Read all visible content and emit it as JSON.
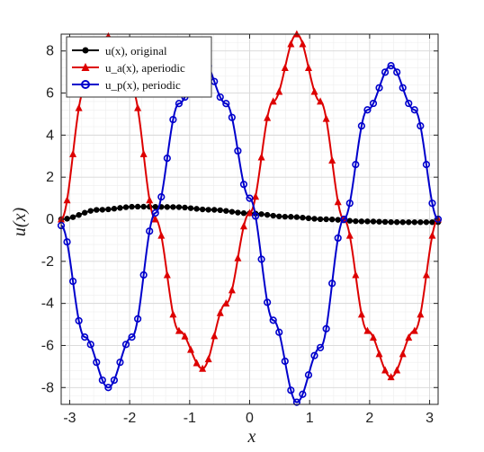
{
  "chart_data": {
    "type": "line",
    "xlabel": "x",
    "ylabel": "u(x)",
    "xlim": [
      -3.14159,
      3.14159
    ],
    "ylim": [
      -8.8,
      8.8
    ],
    "xticks": [
      -3,
      -2,
      -1,
      0,
      1,
      2,
      3
    ],
    "yticks": [
      -8,
      -6,
      -4,
      -2,
      0,
      2,
      4,
      6,
      8
    ],
    "grid": "on",
    "legend_position": "top-left",
    "series": [
      {
        "name": "u(x), original",
        "color": "#000000",
        "marker": "dot",
        "x": [
          -3.14159,
          -2.51327,
          -1.88496,
          -1.25664,
          -0.62832,
          0.0,
          0.62832,
          1.25664,
          1.88496,
          2.51327,
          3.14159
        ],
        "y": [
          0.0,
          0.45,
          0.6,
          0.58,
          0.45,
          0.28,
          0.12,
          0.0,
          -0.1,
          -0.14,
          -0.14
        ]
      },
      {
        "name": "u_a(x), aperiodic",
        "color": "#dd0000",
        "marker": "triangle",
        "x": [
          -3.14159,
          -2.74889,
          -2.35619,
          -1.9635,
          -1.5708,
          -1.1781,
          -0.7854,
          -0.3927,
          0.0,
          0.3927,
          0.7854,
          1.1781,
          1.5708,
          1.9635,
          2.35619,
          2.74889,
          3.14159
        ],
        "y": [
          0.0,
          6.2,
          8.7,
          6.2,
          0.0,
          -5.3,
          -7.1,
          -4.0,
          0.3,
          5.6,
          8.8,
          5.6,
          0.0,
          -5.3,
          -7.5,
          -5.3,
          0.0
        ]
      },
      {
        "name": "u_p(x), periodic",
        "color": "#0000cc",
        "marker": "circle",
        "x": [
          -3.14159,
          -2.74889,
          -2.35619,
          -1.9635,
          -1.5708,
          -1.1781,
          -0.7854,
          -0.3927,
          0.0,
          0.3927,
          0.7854,
          1.1781,
          1.5708,
          1.9635,
          2.35619,
          2.74889,
          3.14159
        ],
        "y": [
          -0.3,
          -5.6,
          -8.0,
          -5.6,
          0.3,
          5.5,
          7.6,
          5.5,
          1.0,
          -4.8,
          -8.7,
          -6.1,
          0.0,
          5.2,
          7.3,
          5.2,
          0.0
        ]
      }
    ]
  },
  "legend": [
    {
      "label": "u(x), original"
    },
    {
      "label": "u_a(x), aperiodic"
    },
    {
      "label": "u_p(x), periodic"
    }
  ]
}
